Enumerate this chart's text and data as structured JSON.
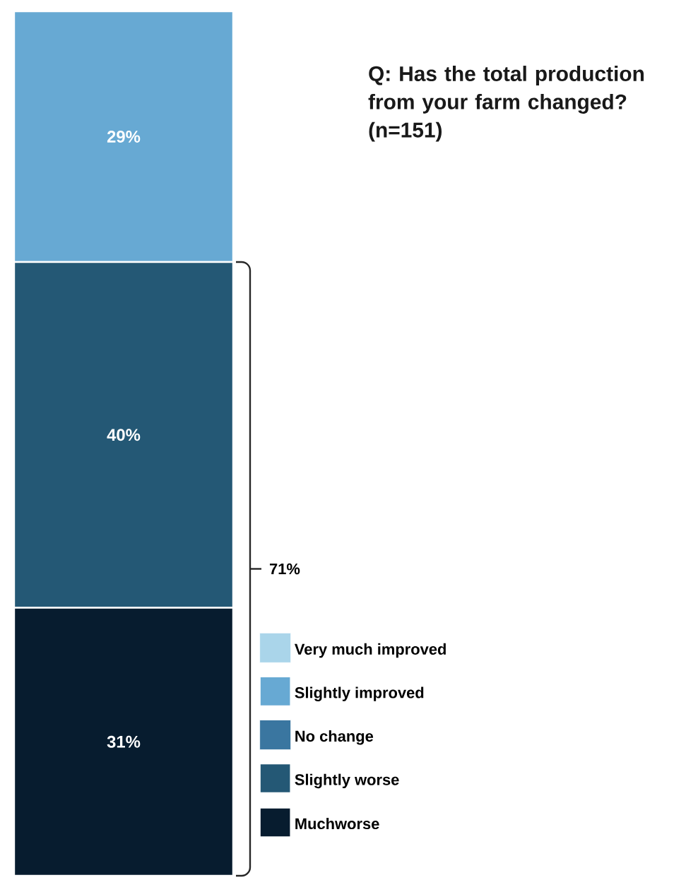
{
  "chart_data": {
    "type": "bar",
    "stacked": true,
    "title": "Q: Has the total production from your farm changed? (n=151)",
    "categories": [
      null
    ],
    "series": [
      {
        "name": "Muchworse",
        "color": "#071c2f",
        "values": [
          31
        ],
        "value_labels": [
          "31%"
        ]
      },
      {
        "name": "Slightly worse",
        "color": "#245875",
        "values": [
          40
        ],
        "value_labels": [
          "40%"
        ]
      },
      {
        "name": "No change",
        "color": "#3a76a0",
        "values": [
          null
        ]
      },
      {
        "name": "Slightly improved",
        "color": "#67a9d3",
        "values": [
          29
        ],
        "value_labels": [
          "29%"
        ]
      },
      {
        "name": "Very much improved",
        "color": "#aad5ea",
        "values": [
          null
        ]
      }
    ],
    "annotations": [
      "71%"
    ],
    "legend": "bottom right"
  }
}
